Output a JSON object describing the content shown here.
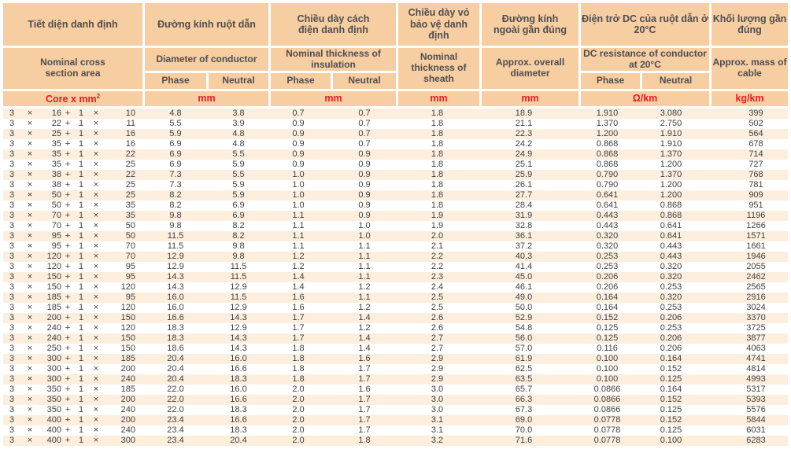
{
  "header": {
    "groups": [
      {
        "vn": "Tiết diện danh định",
        "en": "Nominal cross section area",
        "unit_prefix": "Core x mm",
        "unit_sup": "2"
      },
      {
        "vn": "Đường kính ruột dẫn",
        "en": "Diameter of conductor",
        "unit": "mm"
      },
      {
        "vn": "Chiều dày cách điện danh định",
        "en": "Nominal thickness of insulation",
        "unit": "mm"
      },
      {
        "vn": "Chiều dày vỏ bảo vệ danh định",
        "en": "Nominal thickness of sheath",
        "unit": "mm"
      },
      {
        "vn": "Đường kính ngoài gần đúng",
        "en": "Approx. overall diameter",
        "unit": "mm"
      },
      {
        "vn": "Điện trở DC của ruột dẫn ở 20°C",
        "en": "DC resistance of conductor at 20°C",
        "unit": "Ω/km"
      },
      {
        "vn": "Khối lượng gần đúng",
        "en": "Approx. mass of cable",
        "unit": "kg/km"
      }
    ],
    "sub": {
      "phase": "Phase",
      "neutral": "Neutral"
    }
  },
  "symbols": {
    "phase_count": "3",
    "times": "×",
    "plus": "+",
    "neutral_count": "1"
  },
  "rows": [
    [
      "16",
      "10",
      "4.8",
      "3.8",
      "0.7",
      "0.7",
      "1.8",
      "18.9",
      "1.910",
      "3.080",
      "399"
    ],
    [
      "22",
      "11",
      "5.5",
      "3.9",
      "0.9",
      "0.7",
      "1.8",
      "21.1",
      "1.370",
      "2.750",
      "502"
    ],
    [
      "25",
      "16",
      "5.9",
      "4.8",
      "0.9",
      "0.7",
      "1.8",
      "22.3",
      "1.200",
      "1.910",
      "564"
    ],
    [
      "35",
      "16",
      "6.9",
      "4.8",
      "0.9",
      "0.7",
      "1.8",
      "24.2",
      "0.868",
      "1.910",
      "678"
    ],
    [
      "35",
      "22",
      "6.9",
      "5.5",
      "0.9",
      "0.9",
      "1.8",
      "24.9",
      "0.868",
      "1.370",
      "714"
    ],
    [
      "35",
      "25",
      "6.9",
      "5.9",
      "0.9",
      "0.9",
      "1.8",
      "25.1",
      "0.868",
      "1.200",
      "727"
    ],
    [
      "38",
      "22",
      "7.3",
      "5.5",
      "1.0",
      "0.9",
      "1.8",
      "25.9",
      "0.790",
      "1.370",
      "768"
    ],
    [
      "38",
      "25",
      "7.3",
      "5.9",
      "1.0",
      "0.9",
      "1.8",
      "26.1",
      "0.790",
      "1.200",
      "781"
    ],
    [
      "50",
      "25",
      "8.2",
      "5.9",
      "1.0",
      "0.9",
      "1.8",
      "27.7",
      "0.641",
      "1.200",
      "909"
    ],
    [
      "50",
      "35",
      "8.2",
      "6.9",
      "1.0",
      "0.9",
      "1.8",
      "28.4",
      "0.641",
      "0.868",
      "951"
    ],
    [
      "70",
      "35",
      "9.8",
      "6.9",
      "1.1",
      "0.9",
      "1.9",
      "31.9",
      "0.443",
      "0.868",
      "1196"
    ],
    [
      "70",
      "50",
      "9.8",
      "8.2",
      "1.1",
      "1.0",
      "1.9",
      "32.8",
      "0.443",
      "0.641",
      "1266"
    ],
    [
      "95",
      "50",
      "11.5",
      "8.2",
      "1.1",
      "1.0",
      "2.0",
      "36.1",
      "0.320",
      "0.641",
      "1571"
    ],
    [
      "95",
      "70",
      "11.5",
      "9.8",
      "1.1",
      "1.1",
      "2.1",
      "37.2",
      "0.320",
      "0.443",
      "1661"
    ],
    [
      "120",
      "70",
      "12.9",
      "9.8",
      "1.2",
      "1.1",
      "2.2",
      "40.3",
      "0.253",
      "0.443",
      "1946"
    ],
    [
      "120",
      "95",
      "12.9",
      "11.5",
      "1.2",
      "1.1",
      "2.2",
      "41.4",
      "0.253",
      "0.320",
      "2055"
    ],
    [
      "150",
      "95",
      "14.3",
      "11.5",
      "1.4",
      "1.1",
      "2.3",
      "45.0",
      "0.206",
      "0.320",
      "2462"
    ],
    [
      "150",
      "120",
      "14.3",
      "12.9",
      "1.4",
      "1.2",
      "2.4",
      "46.1",
      "0.206",
      "0.253",
      "2565"
    ],
    [
      "185",
      "95",
      "16.0",
      "11.5",
      "1.6",
      "1.1",
      "2.5",
      "49.0",
      "0.164",
      "0.320",
      "2916"
    ],
    [
      "185",
      "120",
      "16.0",
      "12.9",
      "1.6",
      "1.2",
      "2.5",
      "50.0",
      "0.164",
      "0.253",
      "3024"
    ],
    [
      "200",
      "150",
      "16.6",
      "14.3",
      "1.7",
      "1.4",
      "2.6",
      "52.9",
      "0.152",
      "0.206",
      "3370"
    ],
    [
      "240",
      "120",
      "18.3",
      "12.9",
      "1.7",
      "1.2",
      "2.6",
      "54.8",
      "0.125",
      "0.253",
      "3725"
    ],
    [
      "240",
      "150",
      "18.3",
      "14.3",
      "1.7",
      "1.4",
      "2.7",
      "56.0",
      "0.125",
      "0.206",
      "3877"
    ],
    [
      "250",
      "150",
      "18.6",
      "14.3",
      "1.8",
      "1.4",
      "2.7",
      "57.0",
      "0.116",
      "0.206",
      "4063"
    ],
    [
      "300",
      "185",
      "20.4",
      "16.0",
      "1.8",
      "1.6",
      "2.9",
      "61.9",
      "0.100",
      "0.164",
      "4741"
    ],
    [
      "300",
      "200",
      "20.4",
      "16.6",
      "1.8",
      "1.7",
      "2.9",
      "62.5",
      "0.100",
      "0.152",
      "4814"
    ],
    [
      "300",
      "240",
      "20.4",
      "18.3",
      "1.8",
      "1.7",
      "2.9",
      "63.5",
      "0.100",
      "0.125",
      "4993"
    ],
    [
      "350",
      "185",
      "22.0",
      "16.0",
      "2.0",
      "1.6",
      "3.0",
      "65.7",
      "0.0866",
      "0.164",
      "5317"
    ],
    [
      "350",
      "200",
      "22.0",
      "16.6",
      "2.0",
      "1.7",
      "3.0",
      "66.3",
      "0.0866",
      "0.152",
      "5393"
    ],
    [
      "350",
      "240",
      "22.0",
      "18.3",
      "2.0",
      "1.7",
      "3.0",
      "67.3",
      "0.0866",
      "0.125",
      "5576"
    ],
    [
      "400",
      "200",
      "23.4",
      "16.6",
      "2.0",
      "1.7",
      "3.1",
      "69.0",
      "0.0778",
      "0.152",
      "5844"
    ],
    [
      "400",
      "240",
      "23.4",
      "18.3",
      "2.0",
      "1.7",
      "3.1",
      "70.0",
      "0.0778",
      "0.125",
      "6031"
    ],
    [
      "400",
      "300",
      "23.4",
      "20.4",
      "2.0",
      "1.8",
      "3.2",
      "71.6",
      "0.0778",
      "0.100",
      "6283"
    ]
  ],
  "colors": {
    "header_bg": "#f7cda2",
    "row_alt_bg": "#fdeedd",
    "row_bg": "#ffffff",
    "unit_text": "#ec1c24",
    "header_text": "#4d4e50",
    "data_text": "#3f4041",
    "page_bg": "#ffffff"
  }
}
